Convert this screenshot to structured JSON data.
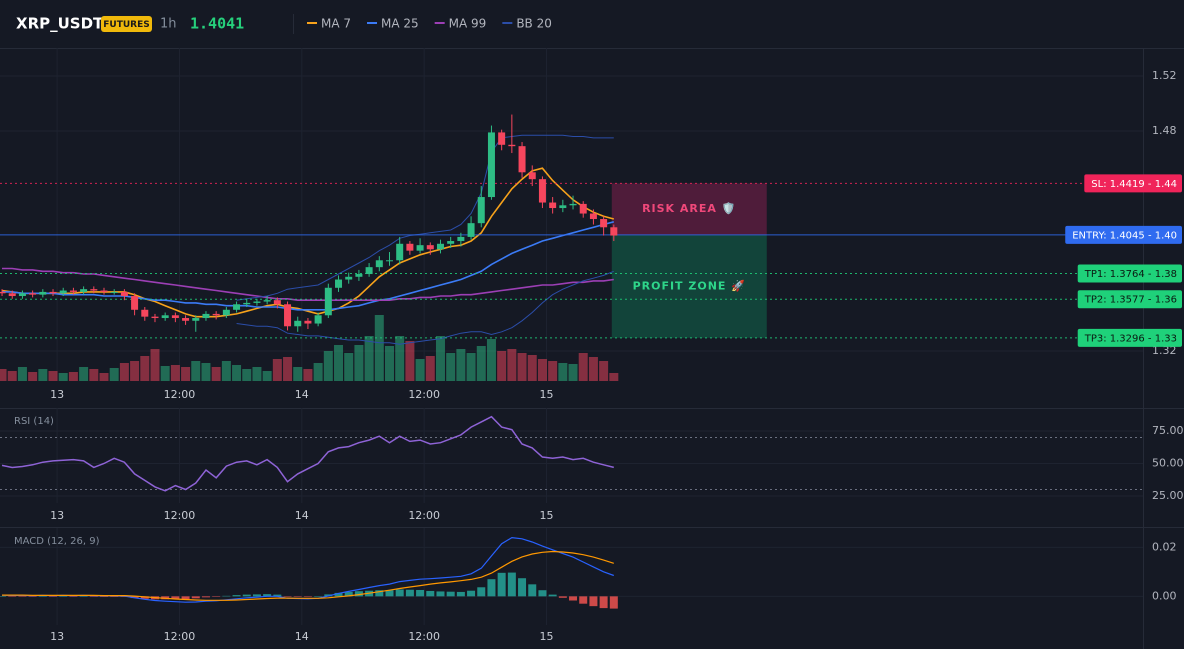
{
  "header": {
    "symbol": "XRP_USDT",
    "badge": "FUTURES",
    "interval": "1h",
    "price": 1.4041
  },
  "chart_data": [
    {
      "type": "candlestick",
      "up_color": "#2ebd85",
      "down_color": "#f6465d",
      "x": [
        0,
        1,
        2,
        3,
        4,
        5,
        6,
        7,
        8,
        9,
        10,
        11,
        12,
        13,
        14,
        15,
        16,
        17,
        18,
        19,
        20,
        21,
        22,
        23,
        24,
        25,
        26,
        27,
        28,
        29,
        30,
        31,
        32,
        33,
        34,
        35,
        36,
        37,
        38,
        39,
        40,
        41,
        42,
        43,
        44,
        45,
        46,
        47,
        48,
        49,
        50,
        51,
        52,
        53,
        54,
        55,
        56,
        57,
        58,
        59,
        60
      ],
      "open": [
        1.363,
        1.362,
        1.36,
        1.362,
        1.361,
        1.363,
        1.362,
        1.364,
        1.363,
        1.365,
        1.364,
        1.363,
        1.363,
        1.36,
        1.35,
        1.345,
        1.344,
        1.346,
        1.344,
        1.342,
        1.344,
        1.347,
        1.346,
        1.35,
        1.354,
        1.355,
        1.356,
        1.357,
        1.354,
        1.338,
        1.342,
        1.34,
        1.346,
        1.366,
        1.372,
        1.374,
        1.376,
        1.381,
        1.386,
        1.386,
        1.398,
        1.393,
        1.397,
        1.394,
        1.398,
        1.4,
        1.403,
        1.413,
        1.432,
        1.479,
        1.47,
        1.469,
        1.45,
        1.445,
        1.428,
        1.424,
        1.426,
        1.427,
        1.42,
        1.416,
        1.41
      ],
      "high": [
        1.365,
        1.364,
        1.364,
        1.364,
        1.365,
        1.365,
        1.366,
        1.366,
        1.367,
        1.367,
        1.366,
        1.365,
        1.365,
        1.362,
        1.352,
        1.347,
        1.348,
        1.348,
        1.346,
        1.346,
        1.349,
        1.349,
        1.352,
        1.356,
        1.358,
        1.358,
        1.36,
        1.359,
        1.356,
        1.345,
        1.344,
        1.348,
        1.369,
        1.375,
        1.377,
        1.379,
        1.384,
        1.389,
        1.392,
        1.403,
        1.4,
        1.402,
        1.399,
        1.401,
        1.403,
        1.406,
        1.418,
        1.44,
        1.484,
        1.481,
        1.492,
        1.472,
        1.455,
        1.447,
        1.432,
        1.43,
        1.433,
        1.429,
        1.423,
        1.418,
        1.412
      ],
      "low": [
        1.36,
        1.358,
        1.358,
        1.359,
        1.359,
        1.36,
        1.36,
        1.361,
        1.361,
        1.362,
        1.361,
        1.361,
        1.357,
        1.346,
        1.342,
        1.341,
        1.342,
        1.341,
        1.339,
        1.334,
        1.342,
        1.343,
        1.344,
        1.348,
        1.352,
        1.353,
        1.354,
        1.351,
        1.335,
        1.334,
        1.336,
        1.338,
        1.344,
        1.363,
        1.369,
        1.371,
        1.374,
        1.378,
        1.382,
        1.383,
        1.39,
        1.391,
        1.39,
        1.391,
        1.395,
        1.396,
        1.401,
        1.41,
        1.43,
        1.466,
        1.464,
        1.446,
        1.44,
        1.424,
        1.42,
        1.421,
        1.423,
        1.417,
        1.412,
        1.404,
        1.4
      ],
      "close": [
        1.362,
        1.36,
        1.362,
        1.361,
        1.363,
        1.362,
        1.364,
        1.363,
        1.365,
        1.364,
        1.363,
        1.363,
        1.36,
        1.35,
        1.345,
        1.344,
        1.346,
        1.344,
        1.342,
        1.344,
        1.347,
        1.346,
        1.35,
        1.354,
        1.355,
        1.356,
        1.357,
        1.354,
        1.338,
        1.342,
        1.34,
        1.346,
        1.366,
        1.372,
        1.374,
        1.376,
        1.381,
        1.386,
        1.386,
        1.398,
        1.393,
        1.397,
        1.394,
        1.398,
        1.4,
        1.403,
        1.413,
        1.432,
        1.479,
        1.47,
        1.469,
        1.45,
        1.445,
        1.428,
        1.424,
        1.426,
        1.427,
        1.42,
        1.416,
        1.41,
        1.404
      ],
      "volume": [
        12,
        10,
        14,
        9,
        12,
        10,
        8,
        9,
        14,
        12,
        8,
        13,
        18,
        20,
        25,
        32,
        15,
        16,
        14,
        20,
        18,
        14,
        20,
        16,
        12,
        14,
        10,
        22,
        24,
        14,
        12,
        18,
        30,
        36,
        28,
        36,
        45,
        66,
        35,
        45,
        40,
        22,
        25,
        45,
        28,
        32,
        28,
        35,
        42,
        30,
        32,
        28,
        26,
        22,
        20,
        18,
        17,
        28,
        24,
        20,
        8
      ],
      "series": [
        {
          "name": "MA 7",
          "color": "#f7a21b",
          "values": [
            1.364,
            1.363,
            1.362,
            1.362,
            1.362,
            1.362,
            1.362,
            1.362,
            1.363,
            1.363,
            1.363,
            1.363,
            1.363,
            1.361,
            1.358,
            1.356,
            1.353,
            1.35,
            1.347,
            1.345,
            1.345,
            1.345,
            1.346,
            1.347,
            1.349,
            1.351,
            1.353,
            1.354,
            1.352,
            1.351,
            1.349,
            1.347,
            1.349,
            1.351,
            1.355,
            1.36,
            1.367,
            1.374,
            1.379,
            1.384,
            1.387,
            1.39,
            1.392,
            1.394,
            1.396,
            1.397,
            1.4,
            1.406,
            1.418,
            1.428,
            1.438,
            1.445,
            1.451,
            1.453,
            1.444,
            1.437,
            1.43,
            1.425,
            1.421,
            1.418,
            1.416
          ]
        },
        {
          "name": "MA 25",
          "color": "#3b7bf6",
          "values": [
            1.363,
            1.363,
            1.362,
            1.362,
            1.362,
            1.362,
            1.361,
            1.361,
            1.361,
            1.361,
            1.36,
            1.36,
            1.36,
            1.359,
            1.358,
            1.357,
            1.357,
            1.356,
            1.355,
            1.355,
            1.354,
            1.354,
            1.353,
            1.353,
            1.353,
            1.352,
            1.352,
            1.352,
            1.351,
            1.35,
            1.35,
            1.35,
            1.35,
            1.351,
            1.352,
            1.353,
            1.355,
            1.357,
            1.358,
            1.36,
            1.362,
            1.364,
            1.366,
            1.368,
            1.37,
            1.372,
            1.375,
            1.378,
            1.383,
            1.387,
            1.391,
            1.394,
            1.397,
            1.4,
            1.402,
            1.404,
            1.406,
            1.408,
            1.41,
            1.412,
            1.414
          ]
        },
        {
          "name": "MA 99",
          "color": "#9c3fb5",
          "values": [
            1.38,
            1.38,
            1.379,
            1.379,
            1.378,
            1.378,
            1.377,
            1.377,
            1.376,
            1.376,
            1.375,
            1.374,
            1.373,
            1.372,
            1.371,
            1.37,
            1.369,
            1.368,
            1.367,
            1.366,
            1.365,
            1.364,
            1.363,
            1.362,
            1.361,
            1.36,
            1.359,
            1.358,
            1.358,
            1.357,
            1.357,
            1.357,
            1.357,
            1.357,
            1.357,
            1.357,
            1.357,
            1.357,
            1.357,
            1.358,
            1.358,
            1.359,
            1.359,
            1.36,
            1.36,
            1.361,
            1.361,
            1.362,
            1.363,
            1.364,
            1.365,
            1.366,
            1.367,
            1.368,
            1.368,
            1.369,
            1.37,
            1.37,
            1.371,
            1.371,
            1.372
          ]
        },
        {
          "name": "BB 20",
          "color": "#2b4da8",
          "upper": [
            null,
            null,
            null,
            null,
            null,
            null,
            null,
            null,
            null,
            null,
            null,
            null,
            null,
            null,
            null,
            null,
            null,
            null,
            null,
            null,
            null,
            null,
            null,
            1.357,
            1.358,
            1.359,
            1.36,
            1.362,
            1.365,
            1.366,
            1.367,
            1.368,
            1.372,
            1.376,
            1.38,
            1.384,
            1.388,
            1.393,
            1.397,
            1.402,
            1.404,
            1.405,
            1.406,
            1.407,
            1.408,
            1.412,
            1.42,
            1.435,
            1.465,
            1.475,
            1.476,
            1.477,
            1.477,
            1.477,
            1.477,
            1.477,
            1.476,
            1.476,
            1.475,
            1.475,
            1.475
          ],
          "lower": [
            null,
            null,
            null,
            null,
            null,
            null,
            null,
            null,
            null,
            null,
            null,
            null,
            null,
            null,
            null,
            null,
            null,
            null,
            null,
            null,
            null,
            null,
            null,
            1.34,
            1.339,
            1.338,
            1.338,
            1.337,
            1.333,
            1.332,
            1.331,
            1.331,
            1.33,
            1.329,
            1.328,
            1.328,
            1.327,
            1.326,
            1.326,
            1.325,
            1.326,
            1.327,
            1.328,
            1.329,
            1.331,
            1.333,
            1.334,
            1.334,
            1.332,
            1.334,
            1.337,
            1.342,
            1.348,
            1.355,
            1.361,
            1.365,
            1.368,
            1.371,
            1.373,
            1.375,
            1.378
          ]
        }
      ],
      "levels": [
        {
          "label": "SL: 1.4419 - 1.44",
          "value": 1.4419,
          "color": "#f0245a",
          "text_color": "#ffffff",
          "style": "dotted"
        },
        {
          "label": "ENTRY: 1.4045 - 1.40",
          "value": 1.4045,
          "color": "#2f6bf0",
          "text_color": "#ffffff",
          "style": "solid"
        },
        {
          "label": "TP1: 1.3764 - 1.38",
          "value": 1.3764,
          "color": "#1fd17a",
          "text_color": "#0b1a12",
          "style": "dotted"
        },
        {
          "label": "TP2: 1.3577 - 1.36",
          "value": 1.3577,
          "color": "#1fd17a",
          "text_color": "#0b1a12",
          "style": "dotted"
        },
        {
          "label": "TP3: 1.3296 - 1.33",
          "value": 1.3296,
          "color": "#1fd17a",
          "text_color": "#0b1a12",
          "style": "dotted"
        }
      ],
      "zones": [
        {
          "label": "RISK AREA 🛡️",
          "top": 1.4419,
          "bottom": 1.4045,
          "x_range": [
            59.8,
            75
          ],
          "color": "#8a2050",
          "text_color": "#f0487a"
        },
        {
          "label": "PROFIT ZONE 🚀",
          "top": 1.4045,
          "bottom": 1.3296,
          "x_range": [
            59.8,
            75
          ],
          "color": "#0f7050",
          "text_color": "#2ed68a"
        }
      ],
      "xlim": [
        -0.2,
        111.9
      ],
      "ylim": [
        1.2982,
        1.5404
      ],
      "yticks": [
        1.32,
        1.48,
        1.52
      ],
      "xticks": [
        {
          "value": 5.4,
          "label": "13"
        },
        {
          "value": 17.4,
          "label": "12:00"
        },
        {
          "value": 29.4,
          "label": "14"
        },
        {
          "value": 41.4,
          "label": "12:00"
        },
        {
          "value": 53.4,
          "label": "15"
        }
      ],
      "grid": true
    },
    {
      "type": "line",
      "title": "RSI (14)",
      "color": "#8e63d6",
      "values": [
        48.5,
        46.9,
        47.7,
        49,
        51,
        52,
        52.5,
        53,
        52,
        47,
        50,
        54,
        51,
        42,
        37,
        32,
        29,
        33,
        30,
        35,
        45,
        39,
        48,
        51,
        52,
        49,
        53,
        47,
        36,
        42,
        46,
        50,
        59,
        62,
        63,
        66,
        68,
        71,
        66,
        71,
        67,
        68,
        65,
        66,
        69,
        72,
        78,
        82,
        86,
        78,
        76,
        65,
        62,
        55,
        54,
        55,
        53,
        54,
        51,
        49,
        47
      ],
      "levels": [
        70,
        30
      ],
      "ylim": [
        19.6,
        92.7
      ],
      "yticks": [
        {
          "value": 75,
          "label": "75.00"
        },
        {
          "value": 50,
          "label": "50.00"
        },
        {
          "value": 25,
          "label": "25.00"
        }
      ],
      "xticks": [
        {
          "value": 5.4,
          "label": "13"
        },
        {
          "value": 17.4,
          "label": "12:00"
        },
        {
          "value": 29.4,
          "label": "14"
        },
        {
          "value": 41.4,
          "label": "12:00"
        },
        {
          "value": 53.4,
          "label": "15"
        }
      ],
      "grid": true
    },
    {
      "type": "combo",
      "title": "MACD (12, 26, 9)",
      "series": [
        {
          "color": "#2962ff",
          "values": [
            0.0005,
            0.0004,
            0.0004,
            0.0003,
            0.0004,
            0.0003,
            0.0004,
            0.0003,
            0.0004,
            0.0003,
            0.0002,
            0.0002,
            0.0001,
            -0.0006,
            -0.0012,
            -0.0017,
            -0.002,
            -0.0022,
            -0.0024,
            -0.0023,
            -0.002,
            -0.0018,
            -0.0014,
            -0.001,
            -0.0006,
            -0.0003,
            0,
            0,
            -0.0008,
            -0.0009,
            -0.001,
            -0.0008,
            0.0002,
            0.0012,
            0.002,
            0.0028,
            0.0036,
            0.0044,
            0.005,
            0.006,
            0.0065,
            0.007,
            0.0072,
            0.0075,
            0.0078,
            0.0082,
            0.0092,
            0.0115,
            0.0165,
            0.0215,
            0.024,
            0.0235,
            0.0222,
            0.0205,
            0.019,
            0.0175,
            0.016,
            0.014,
            0.012,
            0.01,
            0.0085
          ]
        },
        {
          "color": "#ff9800",
          "values": [
            0.0005,
            0.0005,
            0.0005,
            0.0004,
            0.0004,
            0.0004,
            0.0004,
            0.0004,
            0.0004,
            0.0004,
            0.0003,
            0.0003,
            0.0003,
            0.0001,
            -0.0002,
            -0.0005,
            -0.0008,
            -0.0011,
            -0.0013,
            -0.0015,
            -0.0016,
            -0.0016,
            -0.0016,
            -0.0015,
            -0.0013,
            -0.0011,
            -0.0009,
            -0.0007,
            -0.0007,
            -0.0008,
            -0.0008,
            -0.0008,
            -0.0006,
            -0.0002,
            0.0002,
            0.0007,
            0.0013,
            0.0019,
            0.0025,
            0.0032,
            0.0038,
            0.0044,
            0.005,
            0.0055,
            0.0059,
            0.0064,
            0.0069,
            0.0078,
            0.0095,
            0.0119,
            0.0143,
            0.0161,
            0.0173,
            0.018,
            0.0183,
            0.0181,
            0.0177,
            0.017,
            0.016,
            0.0148,
            0.0135
          ]
        }
      ],
      "histogram": {
        "up_color": "#26a69a",
        "down_color": "#ef5350",
        "values": [
          0,
          -0.0001,
          -0.0001,
          -0.0001,
          0,
          -0.0001,
          0,
          -0.0001,
          0,
          -0.0001,
          -0.0001,
          -0.0001,
          -0.0002,
          -0.0007,
          -0.001,
          -0.0012,
          -0.0012,
          -0.0011,
          -0.0011,
          -0.0008,
          -0.0004,
          -0.0002,
          0.0002,
          0.0005,
          0.0007,
          0.0008,
          0.0009,
          0.0007,
          -0.0001,
          -0.0001,
          -0.0002,
          0,
          0.0008,
          0.0014,
          0.0018,
          0.0021,
          0.0023,
          0.0025,
          0.0025,
          0.0028,
          0.0027,
          0.0026,
          0.0022,
          0.002,
          0.0019,
          0.0018,
          0.0023,
          0.0037,
          0.007,
          0.0096,
          0.0097,
          0.0074,
          0.0049,
          0.0025,
          0.0007,
          -0.0006,
          -0.0017,
          -0.003,
          -0.004,
          -0.0048,
          -0.005
        ]
      },
      "ylim": [
        -0.0117,
        0.0279
      ],
      "yticks": [
        0.02,
        {
          "value": 0,
          "label": "0.00"
        }
      ],
      "xticks": [
        {
          "value": 5.4,
          "label": "13"
        },
        {
          "value": 17.4,
          "label": "12:00"
        },
        {
          "value": 29.4,
          "label": "14"
        },
        {
          "value": 41.4,
          "label": "12:00"
        },
        {
          "value": 53.4,
          "label": "15"
        }
      ],
      "grid": true
    }
  ]
}
